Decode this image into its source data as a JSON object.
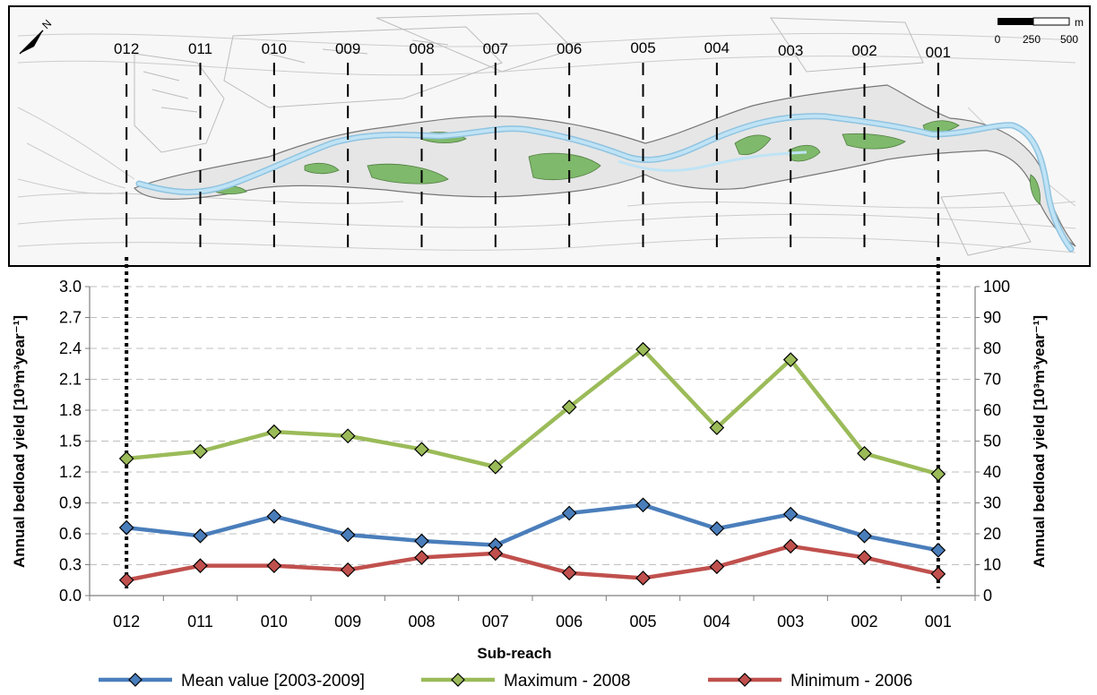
{
  "chart_data": {
    "type": "line",
    "categories": [
      "012",
      "011",
      "010",
      "009",
      "008",
      "007",
      "006",
      "005",
      "004",
      "003",
      "002",
      "001"
    ],
    "series": [
      {
        "name": "Mean value [2003-2009]",
        "color": "#4a7ebb",
        "values": [
          0.66,
          0.58,
          0.77,
          0.59,
          0.53,
          0.49,
          0.8,
          0.88,
          0.65,
          0.79,
          0.58,
          0.44
        ]
      },
      {
        "name": "Maximum - 2008",
        "color": "#9bbb59",
        "values": [
          1.33,
          1.4,
          1.59,
          1.55,
          1.42,
          1.25,
          1.83,
          2.39,
          1.63,
          2.29,
          1.38,
          1.18
        ]
      },
      {
        "name": "Minimum - 2006",
        "color": "#c0504d",
        "values": [
          0.15,
          0.29,
          0.29,
          0.25,
          0.37,
          0.41,
          0.22,
          0.17,
          0.28,
          0.48,
          0.37,
          0.21
        ]
      }
    ],
    "xlabel": "Sub-reach",
    "ylabel_left": "Annual bedload yield [10³m³year⁻¹]",
    "ylabel_right": "Annual bedload yield [10³m³year⁻¹]",
    "ylim_left": [
      0,
      3.0
    ],
    "yticks_left": [
      "0.0",
      "0.3",
      "0.6",
      "0.9",
      "1.2",
      "1.5",
      "1.8",
      "2.1",
      "2.4",
      "2.7",
      "3.0"
    ],
    "ylim_right": [
      0,
      100
    ],
    "yticks_right": [
      "0",
      "10",
      "20",
      "30",
      "40",
      "50",
      "60",
      "70",
      "80",
      "90",
      "100"
    ],
    "grid": "horizontal dashed",
    "legend_position": "bottom",
    "marker": "diamond"
  },
  "map": {
    "reach_labels": [
      "012",
      "011",
      "010",
      "009",
      "008",
      "007",
      "006",
      "005",
      "004",
      "003",
      "002",
      "001"
    ],
    "scale_unit": "m",
    "scale_ticks": [
      "0",
      "250",
      "500"
    ],
    "north_label": "N",
    "water_color": "#bfe3f5",
    "vegetation_color": "#7fb96b",
    "gravel_color": "#e6e6e6"
  }
}
